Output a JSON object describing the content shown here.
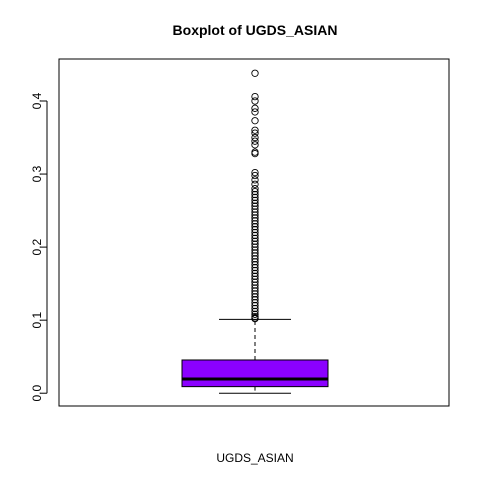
{
  "chart_data": {
    "type": "boxplot",
    "title": "Boxplot of UGDS_ASIAN",
    "xlabel": "UGDS_ASIAN",
    "ylabel": "",
    "ylim": [
      -0.0175,
      0.4575
    ],
    "y_ticks": [
      0.0,
      0.1,
      0.2,
      0.3,
      0.4
    ],
    "y_tick_labels": [
      "0.0",
      "0.1",
      "0.2",
      "0.3",
      "0.4"
    ],
    "box_color": "#8B00FF",
    "grid": false,
    "box": {
      "name": "UGDS_ASIAN",
      "min": 0.0,
      "q1": 0.009,
      "median": 0.0195,
      "q3": 0.0455,
      "whisker_high": 0.101
    },
    "outliers": [
      0.438,
      0.406,
      0.4,
      0.39,
      0.385,
      0.373,
      0.36,
      0.356,
      0.35,
      0.345,
      0.34,
      0.33,
      0.328,
      0.302,
      0.298,
      0.292,
      0.286,
      0.28,
      0.276,
      0.272,
      0.268,
      0.264,
      0.26,
      0.256,
      0.252,
      0.248,
      0.244,
      0.24,
      0.236,
      0.232,
      0.228,
      0.224,
      0.22,
      0.216,
      0.212,
      0.208,
      0.204,
      0.2,
      0.196,
      0.192,
      0.188,
      0.184,
      0.18,
      0.176,
      0.172,
      0.168,
      0.164,
      0.16,
      0.156,
      0.152,
      0.148,
      0.144,
      0.14,
      0.136,
      0.132,
      0.128,
      0.124,
      0.12,
      0.116,
      0.112,
      0.108,
      0.105,
      0.103,
      0.102
    ]
  }
}
